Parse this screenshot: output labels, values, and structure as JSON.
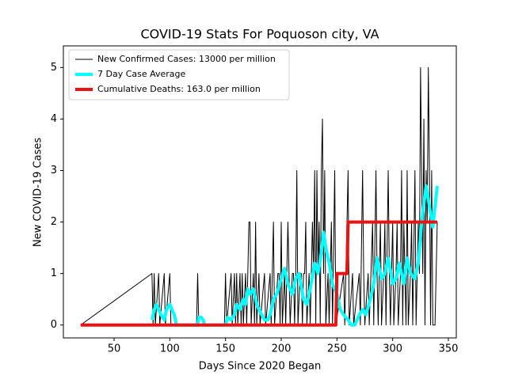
{
  "chart_data": {
    "type": "line",
    "title": "COVID-19 Stats For Poquoson city, VA",
    "xlabel": "Days Since 2020 Began",
    "ylabel": "New COVID-19 Cases",
    "xlim": [
      4.5,
      357.1
    ],
    "ylim": [
      -0.25,
      5.42
    ],
    "xticks": [
      50,
      100,
      150,
      200,
      250,
      300,
      350
    ],
    "yticks": [
      0,
      1,
      2,
      3,
      4,
      5
    ],
    "legend": "upper left",
    "series": [
      {
        "name": "New Confirmed Cases: 13000 per million",
        "color": "#000000",
        "width": 1,
        "x": [
          20,
          84,
          85,
          86,
          87,
          90,
          91,
          95,
          96,
          100,
          101,
          124,
          125,
          126,
          149,
          150,
          151,
          155,
          156,
          158,
          159,
          160,
          161,
          163,
          164,
          165,
          166,
          168,
          169,
          171,
          172,
          173,
          175,
          176,
          177,
          178,
          180,
          181,
          185,
          186,
          190,
          191,
          193,
          194,
          197,
          198,
          199,
          200,
          201,
          203,
          204,
          206,
          207,
          208,
          210,
          211,
          212,
          213,
          214,
          215,
          217,
          218,
          219,
          220,
          221,
          222,
          223,
          225,
          226,
          228,
          229,
          230,
          231,
          232,
          233,
          234,
          235,
          236,
          237,
          238,
          239,
          240,
          242,
          243,
          245,
          246,
          248,
          249,
          256,
          257,
          260,
          261,
          264,
          265,
          270,
          271,
          273,
          274,
          275,
          278,
          279,
          282,
          283,
          285,
          286,
          287,
          289,
          290,
          292,
          293,
          294,
          296,
          297,
          298,
          300,
          301,
          303,
          304,
          305,
          307,
          308,
          309,
          310,
          311,
          312,
          313,
          314,
          316,
          317,
          318,
          320,
          321,
          323,
          324,
          325,
          326,
          327,
          328,
          329,
          330,
          331,
          332,
          333,
          334,
          335,
          336,
          338,
          340
        ],
        "values": [
          0,
          1,
          0,
          1,
          0,
          1,
          0,
          1,
          0,
          1,
          0,
          0,
          1,
          0,
          0,
          1,
          0,
          1,
          0,
          1,
          0,
          1,
          0,
          1,
          0,
          1,
          0,
          1,
          0,
          2,
          2,
          0,
          1,
          0,
          2,
          0,
          1,
          0,
          1,
          0,
          1,
          0,
          2,
          0,
          1,
          1,
          0,
          2,
          0,
          1,
          0,
          2,
          1,
          0,
          1,
          1,
          0,
          1,
          3,
          0,
          1,
          1,
          0,
          1,
          1,
          2,
          0,
          1,
          0,
          2,
          1,
          3,
          0,
          3,
          1,
          2,
          0,
          3,
          4,
          1,
          3,
          0,
          1,
          0,
          2,
          0,
          3,
          0,
          1,
          0,
          3,
          0,
          1,
          0,
          1,
          0,
          3,
          1,
          0,
          1,
          0,
          2,
          0,
          3,
          1,
          0,
          2,
          0,
          1,
          2,
          0,
          3,
          1,
          0,
          2,
          0,
          1,
          2,
          0,
          1,
          3,
          0,
          2,
          1,
          0,
          3,
          0,
          1,
          2,
          0,
          3,
          0,
          2,
          1,
          5,
          3,
          1,
          4,
          0,
          3,
          2,
          5,
          3,
          0,
          3,
          0,
          0,
          2
        ]
      },
      {
        "name": "7 Day Case Average",
        "color": "#00ffff",
        "width": 4,
        "x": [
          84,
          86,
          88,
          90,
          92,
          95,
          97,
          100,
          102,
          104,
          106,
          110,
          125,
          126,
          128,
          130,
          131,
          150,
          152,
          155,
          158,
          160,
          163,
          166,
          168,
          170,
          172,
          175,
          178,
          180,
          185,
          188,
          190,
          193,
          196,
          200,
          203,
          206,
          210,
          213,
          216,
          220,
          223,
          226,
          230,
          233,
          236,
          238,
          240,
          243,
          246,
          250,
          253,
          256,
          260,
          263,
          266,
          270,
          273,
          276,
          280,
          283,
          286,
          290,
          293,
          296,
          300,
          303,
          306,
          310,
          313,
          316,
          320,
          323,
          326,
          330,
          333,
          336,
          340
        ],
        "values": [
          0.1,
          0.3,
          0.4,
          0.3,
          0.2,
          0.1,
          0.3,
          0.4,
          0.3,
          0.2,
          0,
          0,
          0,
          0.15,
          0.15,
          0.1,
          0,
          0,
          0.15,
          0.1,
          0.2,
          0.4,
          0.3,
          0.5,
          0.4,
          0.7,
          0.6,
          0.7,
          0.4,
          0.3,
          0.1,
          0.1,
          0.2,
          0.5,
          0.6,
          0.9,
          1.1,
          0.8,
          0.6,
          0.9,
          1.0,
          0.5,
          0.4,
          0.7,
          1.2,
          1.0,
          1.4,
          1.8,
          1.5,
          1.2,
          0.8,
          0.6,
          0.3,
          0.2,
          0.1,
          0,
          0,
          0.2,
          0.3,
          0.2,
          0.5,
          0.8,
          1.3,
          0.9,
          1.0,
          1.3,
          0.8,
          0.9,
          1.2,
          0.8,
          1.3,
          1.0,
          0.9,
          1.2,
          2.0,
          2.7,
          2.3,
          1.9,
          2.7
        ]
      },
      {
        "name": "Cumulative Deaths: 163.0 per million",
        "color": "#ee1111",
        "width": 4,
        "x": [
          20,
          249,
          250,
          259,
          260,
          340
        ],
        "values": [
          0,
          0,
          1,
          1,
          2,
          2
        ]
      }
    ]
  }
}
